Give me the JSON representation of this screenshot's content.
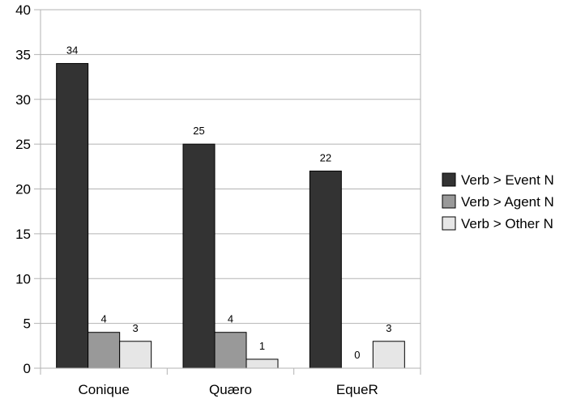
{
  "chart_data": {
    "type": "bar",
    "title": "",
    "xlabel": "",
    "ylabel": "",
    "categories": [
      "Conique",
      "Quæro",
      "EqueR"
    ],
    "series": [
      {
        "name": "Verb > Event N",
        "values": [
          34,
          25,
          22
        ],
        "color": "#333333"
      },
      {
        "name": "Verb > Agent N",
        "values": [
          4,
          4,
          0
        ],
        "color": "#999999"
      },
      {
        "name": "Verb > Other N",
        "values": [
          3,
          1,
          3
        ],
        "color": "#e6e6e6"
      }
    ],
    "ylim": [
      0,
      40
    ],
    "yticks": [
      0,
      5,
      10,
      15,
      20,
      25,
      30,
      35,
      40
    ],
    "grid": true,
    "legend": "right",
    "data_labels": true
  }
}
